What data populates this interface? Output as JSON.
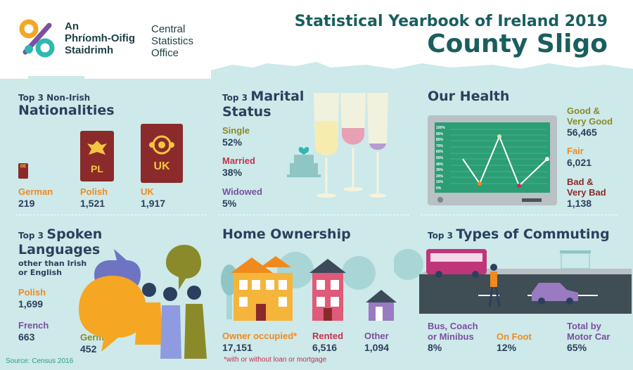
{
  "header": {
    "logo_ga": [
      "An",
      "Phríomh-Oifig",
      "Staidrimh"
    ],
    "logo_en": [
      "Central",
      "Statistics",
      "Office"
    ],
    "yearbook_title": "Statistical Yearbook of Ireland 2019",
    "county": "County Sligo"
  },
  "nationalities": {
    "title_small": "Top 3 Non-Irish",
    "title_big": "Nationalities",
    "items": [
      {
        "label": "German",
        "value": "219",
        "passport_code": "DE"
      },
      {
        "label": "Polish",
        "value": "1,521",
        "passport_code": "PL"
      },
      {
        "label": "UK",
        "value": "1,917",
        "passport_code": "UK"
      }
    ]
  },
  "marital": {
    "title_small": "Top 3",
    "title_big_1": "Marital",
    "title_big_2": "Status",
    "items": [
      {
        "label": "Single",
        "value": "52%"
      },
      {
        "label": "Married",
        "value": "38%"
      },
      {
        "label": "Widowed",
        "value": "5%"
      }
    ]
  },
  "health": {
    "title": "Our Health",
    "monitor_ticks": [
      "100%",
      "90%",
      "80%",
      "70%",
      "60%",
      "50%",
      "40%",
      "30%",
      "20%",
      "10%",
      "0%"
    ],
    "items": [
      {
        "label_1": "Good &",
        "label_2": "Very Good",
        "value": "56,465"
      },
      {
        "label_1": "Fair",
        "label_2": "",
        "value": "6,021"
      },
      {
        "label_1": "Bad &",
        "label_2": "Very Bad",
        "value": "1,138"
      }
    ]
  },
  "languages": {
    "title_small": "Top 3",
    "title_big_1": "Spoken",
    "title_big_2": "Languages",
    "subtitle_1": "other than Irish",
    "subtitle_2": "or English",
    "items": [
      {
        "label": "Polish",
        "value": "1,699"
      },
      {
        "label": "French",
        "value": "663"
      },
      {
        "label": "German",
        "value": "452"
      }
    ]
  },
  "home": {
    "title": "Home Ownership",
    "items": [
      {
        "label": "Owner occupied*",
        "value": "17,151"
      },
      {
        "label": "Rented",
        "value": "6,516"
      },
      {
        "label": "Other",
        "value": "1,094"
      }
    ],
    "footnote": "*with or without loan or mortgage"
  },
  "commuting": {
    "title_small": "Top 3",
    "title_big": "Types of Commuting",
    "items": [
      {
        "label_1": "Bus, Coach",
        "label_2": "or Minibus",
        "value": "8%"
      },
      {
        "label_1": "On Foot",
        "label_2": "",
        "value": "12%"
      },
      {
        "label_1": "Total by",
        "label_2": "Motor Car",
        "value": "65%"
      }
    ]
  },
  "source": "Source: Census 2016",
  "colors": {
    "background": "#cde9e9",
    "title": "#1a5e5e",
    "heading": "#2c3f5e",
    "orange": "#f08a1e",
    "red": "#c4304e",
    "purple": "#7a4fa0",
    "olive": "#8a8a2a",
    "dark_red": "#8b2a2a"
  }
}
